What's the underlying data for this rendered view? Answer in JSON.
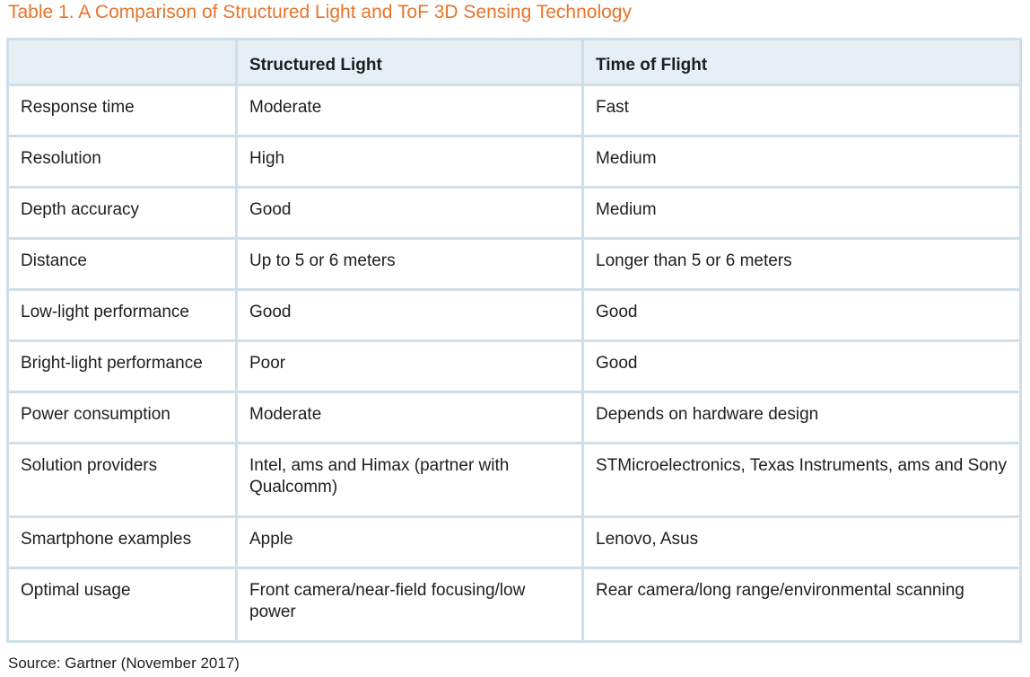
{
  "caption": "Table 1. A Comparison of Structured Light and ToF 3D Sensing Technology",
  "table": {
    "headers": [
      "",
      "Structured Light",
      "Time of Flight"
    ],
    "rows": [
      [
        "Response time",
        "Moderate",
        "Fast"
      ],
      [
        "Resolution",
        "High",
        "Medium"
      ],
      [
        "Depth accuracy",
        "Good",
        "Medium"
      ],
      [
        "Distance",
        "Up to 5 or 6 meters",
        "Longer than 5 or 6 meters"
      ],
      [
        "Low-light performance",
        "Good",
        "Good"
      ],
      [
        "Bright-light performance",
        "Poor",
        "Good"
      ],
      [
        "Power consumption",
        "Moderate",
        "Depends on hardware design"
      ],
      [
        "Solution providers",
        "Intel, ams and Himax (partner with Qualcomm)",
        "STMicroelectronics, Texas Instruments, ams and Sony"
      ],
      [
        "Smartphone examples",
        "Apple",
        "Lenovo, Asus"
      ],
      [
        "Optimal usage",
        "Front camera/near-field focusing/low power",
        "Rear camera/long range/environmental scanning"
      ]
    ]
  },
  "source": "Source: Gartner (November 2017)",
  "colors": {
    "caption": "#e8742a",
    "border": "#cfdfe9",
    "header_bg": "#e6eff5"
  }
}
